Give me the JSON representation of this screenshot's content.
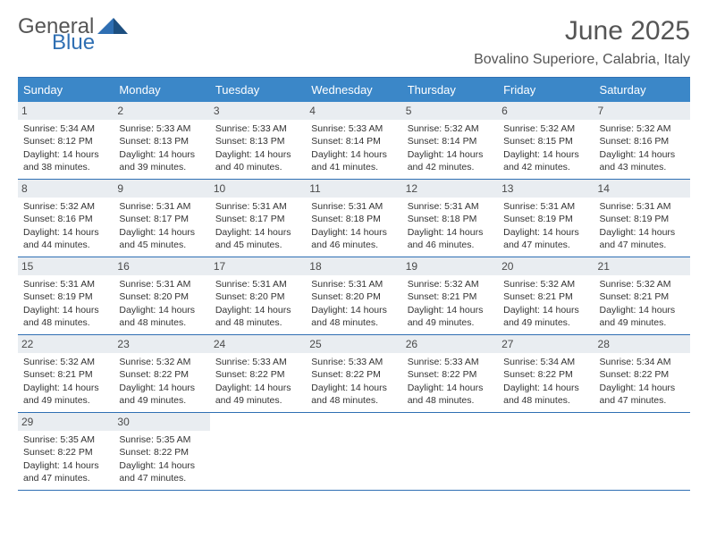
{
  "brand": {
    "part1": "General",
    "part2": "Blue"
  },
  "colors": {
    "headerBar": "#3b87c8",
    "headerBarBorder": "#2f6fb3",
    "dayNumBg": "#e9edf1",
    "weekDivider": "#2f6fb3",
    "logoBlue": "#2f6fb3",
    "textGray": "#555555"
  },
  "title": "June 2025",
  "location": "Bovalino Superiore, Calabria, Italy",
  "weekdays": [
    "Sunday",
    "Monday",
    "Tuesday",
    "Wednesday",
    "Thursday",
    "Friday",
    "Saturday"
  ],
  "weeks": [
    [
      {
        "n": "1",
        "sunrise": "5:34 AM",
        "sunset": "8:12 PM",
        "dl": "14 hours and 38 minutes."
      },
      {
        "n": "2",
        "sunrise": "5:33 AM",
        "sunset": "8:13 PM",
        "dl": "14 hours and 39 minutes."
      },
      {
        "n": "3",
        "sunrise": "5:33 AM",
        "sunset": "8:13 PM",
        "dl": "14 hours and 40 minutes."
      },
      {
        "n": "4",
        "sunrise": "5:33 AM",
        "sunset": "8:14 PM",
        "dl": "14 hours and 41 minutes."
      },
      {
        "n": "5",
        "sunrise": "5:32 AM",
        "sunset": "8:14 PM",
        "dl": "14 hours and 42 minutes."
      },
      {
        "n": "6",
        "sunrise": "5:32 AM",
        "sunset": "8:15 PM",
        "dl": "14 hours and 42 minutes."
      },
      {
        "n": "7",
        "sunrise": "5:32 AM",
        "sunset": "8:16 PM",
        "dl": "14 hours and 43 minutes."
      }
    ],
    [
      {
        "n": "8",
        "sunrise": "5:32 AM",
        "sunset": "8:16 PM",
        "dl": "14 hours and 44 minutes."
      },
      {
        "n": "9",
        "sunrise": "5:31 AM",
        "sunset": "8:17 PM",
        "dl": "14 hours and 45 minutes."
      },
      {
        "n": "10",
        "sunrise": "5:31 AM",
        "sunset": "8:17 PM",
        "dl": "14 hours and 45 minutes."
      },
      {
        "n": "11",
        "sunrise": "5:31 AM",
        "sunset": "8:18 PM",
        "dl": "14 hours and 46 minutes."
      },
      {
        "n": "12",
        "sunrise": "5:31 AM",
        "sunset": "8:18 PM",
        "dl": "14 hours and 46 minutes."
      },
      {
        "n": "13",
        "sunrise": "5:31 AM",
        "sunset": "8:19 PM",
        "dl": "14 hours and 47 minutes."
      },
      {
        "n": "14",
        "sunrise": "5:31 AM",
        "sunset": "8:19 PM",
        "dl": "14 hours and 47 minutes."
      }
    ],
    [
      {
        "n": "15",
        "sunrise": "5:31 AM",
        "sunset": "8:19 PM",
        "dl": "14 hours and 48 minutes."
      },
      {
        "n": "16",
        "sunrise": "5:31 AM",
        "sunset": "8:20 PM",
        "dl": "14 hours and 48 minutes."
      },
      {
        "n": "17",
        "sunrise": "5:31 AM",
        "sunset": "8:20 PM",
        "dl": "14 hours and 48 minutes."
      },
      {
        "n": "18",
        "sunrise": "5:31 AM",
        "sunset": "8:20 PM",
        "dl": "14 hours and 48 minutes."
      },
      {
        "n": "19",
        "sunrise": "5:32 AM",
        "sunset": "8:21 PM",
        "dl": "14 hours and 49 minutes."
      },
      {
        "n": "20",
        "sunrise": "5:32 AM",
        "sunset": "8:21 PM",
        "dl": "14 hours and 49 minutes."
      },
      {
        "n": "21",
        "sunrise": "5:32 AM",
        "sunset": "8:21 PM",
        "dl": "14 hours and 49 minutes."
      }
    ],
    [
      {
        "n": "22",
        "sunrise": "5:32 AM",
        "sunset": "8:21 PM",
        "dl": "14 hours and 49 minutes."
      },
      {
        "n": "23",
        "sunrise": "5:32 AM",
        "sunset": "8:22 PM",
        "dl": "14 hours and 49 minutes."
      },
      {
        "n": "24",
        "sunrise": "5:33 AM",
        "sunset": "8:22 PM",
        "dl": "14 hours and 49 minutes."
      },
      {
        "n": "25",
        "sunrise": "5:33 AM",
        "sunset": "8:22 PM",
        "dl": "14 hours and 48 minutes."
      },
      {
        "n": "26",
        "sunrise": "5:33 AM",
        "sunset": "8:22 PM",
        "dl": "14 hours and 48 minutes."
      },
      {
        "n": "27",
        "sunrise": "5:34 AM",
        "sunset": "8:22 PM",
        "dl": "14 hours and 48 minutes."
      },
      {
        "n": "28",
        "sunrise": "5:34 AM",
        "sunset": "8:22 PM",
        "dl": "14 hours and 47 minutes."
      }
    ],
    [
      {
        "n": "29",
        "sunrise": "5:35 AM",
        "sunset": "8:22 PM",
        "dl": "14 hours and 47 minutes."
      },
      {
        "n": "30",
        "sunrise": "5:35 AM",
        "sunset": "8:22 PM",
        "dl": "14 hours and 47 minutes."
      },
      null,
      null,
      null,
      null,
      null
    ]
  ],
  "labels": {
    "sunrise": "Sunrise: ",
    "sunset": "Sunset: ",
    "daylight": "Daylight: "
  }
}
